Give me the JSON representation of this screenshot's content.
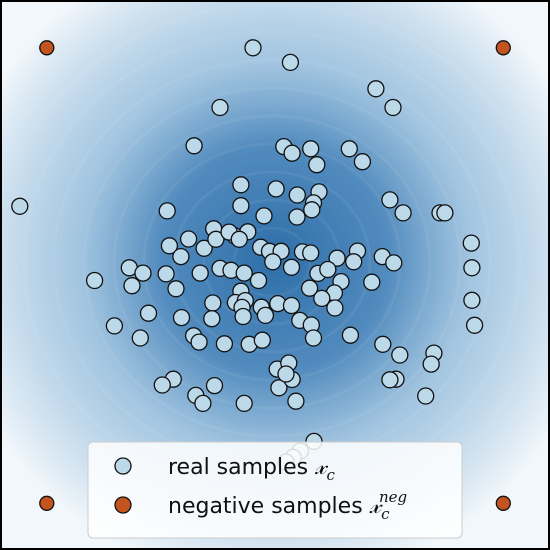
{
  "chart_data": {
    "type": "scatter",
    "background": "density-contour",
    "xlim": [
      -1,
      1
    ],
    "ylim": [
      -1,
      1
    ],
    "grid": false,
    "axes_ticks": false,
    "legend_placement": "bottom-center",
    "colors": {
      "real": "#bcd9ea",
      "negative": "#c4541f",
      "marker_edge": "#111111",
      "density_low": "#f2f7fb",
      "density_high": "#2d6ea8",
      "frame": "#000000"
    },
    "legend": {
      "real": {
        "text": "real samples ",
        "symbol": "𝓍",
        "sub": "c",
        "sup": ""
      },
      "negative": {
        "text": "negative samples ",
        "symbol": "𝓍",
        "sub": "c",
        "sup": "neg"
      }
    },
    "series": [
      {
        "key": "real",
        "points": [
          [
            -0.08,
            0.826
          ],
          [
            0.056,
            0.773
          ],
          [
            0.367,
            0.677
          ],
          [
            0.429,
            0.609
          ],
          [
            -0.2,
            0.609
          ],
          [
            -0.294,
            0.47
          ],
          [
            0.032,
            0.467
          ],
          [
            0.062,
            0.443
          ],
          [
            0.13,
            0.459
          ],
          [
            0.27,
            0.459
          ],
          [
            0.318,
            0.412
          ],
          [
            0.152,
            0.401
          ],
          [
            -0.124,
            0.328
          ],
          [
            0.004,
            0.313
          ],
          [
            0.081,
            0.291
          ],
          [
            0.16,
            0.302
          ],
          [
            0.418,
            0.273
          ],
          [
            0.466,
            0.226
          ],
          [
            0.6,
            0.226
          ],
          [
            -0.928,
            0.25
          ],
          [
            -0.392,
            0.233
          ],
          [
            -0.124,
            0.252
          ],
          [
            -0.04,
            0.215
          ],
          [
            0.08,
            0.211
          ],
          [
            0.14,
            0.262
          ],
          [
            0.134,
            0.237
          ],
          [
            -0.314,
            0.131
          ],
          [
            -0.223,
            0.168
          ],
          [
            -0.145,
            0.142
          ],
          [
            -0.099,
            0.157
          ],
          [
            0.618,
            0.226
          ],
          [
            -0.384,
            0.106
          ],
          [
            -0.342,
            0.067
          ],
          [
            -0.258,
            0.097
          ],
          [
            -0.215,
            0.13
          ],
          [
            -0.167,
            0.156
          ],
          [
            -0.13,
            0.13
          ],
          [
            -0.052,
            0.101
          ],
          [
            -0.02,
            0.086
          ],
          [
            0.022,
            0.086
          ],
          [
            0.1,
            0.084
          ],
          [
            0.13,
            0.08
          ],
          [
            0.226,
            0.061
          ],
          [
            0.3,
            0.087
          ],
          [
            0.39,
            0.067
          ],
          [
            0.432,
            0.044
          ],
          [
            0.714,
            0.116
          ],
          [
            0.716,
            0.026
          ],
          [
            -0.53,
            0.026
          ],
          [
            -0.48,
            0.007
          ],
          [
            -0.396,
            0.004
          ],
          [
            -0.272,
            0.007
          ],
          [
            -0.2,
            0.024
          ],
          [
            -0.16,
            0.017
          ],
          [
            -0.112,
            0.007
          ],
          [
            -0.008,
            0.048
          ],
          [
            0.06,
            0.028
          ],
          [
            0.156,
            0.006
          ],
          [
            0.192,
            0.02
          ],
          [
            0.286,
            0.048
          ],
          [
            -0.656,
            -0.02
          ],
          [
            -0.52,
            -0.039
          ],
          [
            -0.36,
            -0.05
          ],
          [
            -0.124,
            -0.059
          ],
          [
            -0.06,
            -0.02
          ],
          [
            0.126,
            -0.048
          ],
          [
            0.24,
            -0.024
          ],
          [
            0.352,
            -0.026
          ],
          [
            0.216,
            -0.065
          ],
          [
            -0.226,
            -0.102
          ],
          [
            -0.144,
            -0.1
          ],
          [
            -0.108,
            -0.093
          ],
          [
            -0.05,
            -0.117
          ],
          [
            0.01,
            -0.104
          ],
          [
            0.06,
            -0.111
          ],
          [
            0.17,
            -0.085
          ],
          [
            0.218,
            -0.12
          ],
          [
            -0.46,
            -0.139
          ],
          [
            -0.34,
            -0.155
          ],
          [
            -0.12,
            -0.118
          ],
          [
            -0.23,
            -0.159
          ],
          [
            -0.116,
            -0.151
          ],
          [
            -0.035,
            -0.147
          ],
          [
            0.09,
            -0.165
          ],
          [
            0.132,
            -0.182
          ],
          [
            -0.584,
            -0.185
          ],
          [
            -0.49,
            -0.229
          ],
          [
            -0.296,
            -0.221
          ],
          [
            -0.094,
            -0.252
          ],
          [
            -0.046,
            -0.237
          ],
          [
            0.274,
            -0.219
          ],
          [
            0.392,
            -0.252
          ],
          [
            0.454,
            -0.291
          ],
          [
            0.578,
            -0.284
          ],
          [
            0.568,
            -0.324
          ],
          [
            -0.276,
            -0.244
          ],
          [
            0.14,
            -0.229
          ],
          [
            -0.184,
            -0.25
          ],
          [
            0.008,
            -0.342
          ],
          [
            0.05,
            -0.32
          ],
          [
            -0.22,
            -0.402
          ],
          [
            -0.37,
            -0.379
          ],
          [
            -0.41,
            -0.4
          ],
          [
            -0.288,
            -0.438
          ],
          [
            -0.262,
            -0.467
          ],
          [
            -0.112,
            -0.467
          ],
          [
            0.014,
            -0.41
          ],
          [
            0.062,
            -0.38
          ],
          [
            0.04,
            -0.36
          ],
          [
            0.44,
            -0.379
          ],
          [
            0.418,
            -0.381
          ],
          [
            0.548,
            -0.44
          ],
          [
            0.076,
            -0.459
          ],
          [
            0.142,
            -0.605
          ],
          [
            0.092,
            -0.64
          ],
          [
            0.066,
            -0.663
          ],
          [
            0.04,
            -0.68
          ],
          [
            0.726,
            -0.183
          ],
          [
            0.716,
            -0.092
          ]
        ]
      },
      {
        "key": "negative",
        "points": [
          [
            -0.83,
            0.826
          ],
          [
            0.83,
            0.826
          ],
          [
            -0.83,
            -0.83
          ],
          [
            0.83,
            -0.83
          ]
        ]
      }
    ]
  }
}
